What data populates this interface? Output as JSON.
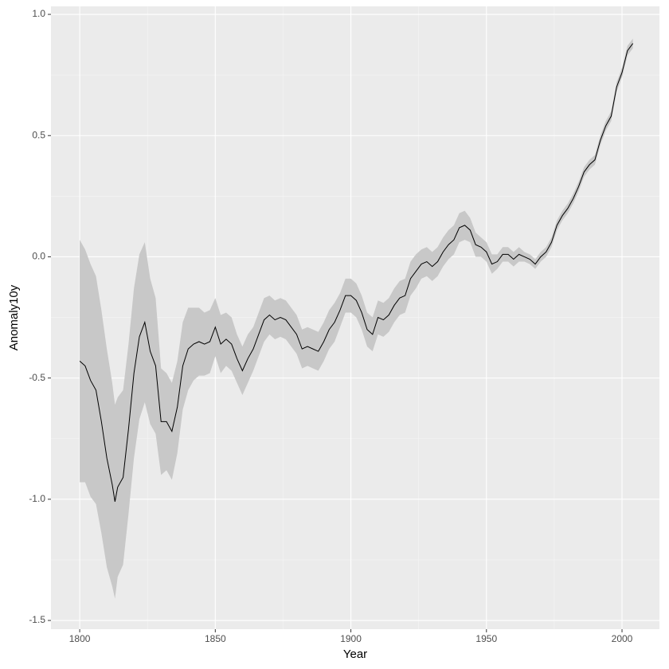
{
  "chart_data": {
    "type": "ribbon-line",
    "x_label": "Year",
    "y_label": "Anomaly10y",
    "x": [
      1800,
      1802,
      1804,
      1806,
      1808,
      1810,
      1812,
      1813,
      1814,
      1816,
      1818,
      1820,
      1822,
      1824,
      1826,
      1828,
      1830,
      1832,
      1834,
      1836,
      1838,
      1840,
      1842,
      1844,
      1846,
      1848,
      1850,
      1852,
      1854,
      1856,
      1858,
      1860,
      1862,
      1864,
      1866,
      1868,
      1870,
      1872,
      1874,
      1876,
      1878,
      1880,
      1882,
      1884,
      1886,
      1888,
      1890,
      1892,
      1894,
      1896,
      1898,
      1900,
      1902,
      1904,
      1906,
      1908,
      1910,
      1912,
      1914,
      1916,
      1918,
      1920,
      1922,
      1924,
      1926,
      1928,
      1930,
      1932,
      1934,
      1936,
      1938,
      1940,
      1942,
      1944,
      1946,
      1948,
      1950,
      1952,
      1954,
      1956,
      1958,
      1960,
      1962,
      1964,
      1966,
      1968,
      1970,
      1972,
      1974,
      1976,
      1978,
      1980,
      1982,
      1984,
      1986,
      1988,
      1990,
      1992,
      1994,
      1996,
      1998,
      2000,
      2002,
      2004
    ],
    "values": [
      -0.43,
      -0.45,
      -0.51,
      -0.55,
      -0.68,
      -0.83,
      -0.94,
      -1.01,
      -0.95,
      -0.91,
      -0.71,
      -0.48,
      -0.33,
      -0.27,
      -0.39,
      -0.45,
      -0.68,
      -0.68,
      -0.72,
      -0.62,
      -0.45,
      -0.38,
      -0.36,
      -0.35,
      -0.36,
      -0.35,
      -0.29,
      -0.36,
      -0.34,
      -0.36,
      -0.42,
      -0.47,
      -0.42,
      -0.38,
      -0.32,
      -0.26,
      -0.24,
      -0.26,
      -0.25,
      -0.26,
      -0.29,
      -0.32,
      -0.38,
      -0.37,
      -0.38,
      -0.39,
      -0.35,
      -0.3,
      -0.27,
      -0.22,
      -0.16,
      -0.16,
      -0.18,
      -0.23,
      -0.3,
      -0.32,
      -0.25,
      -0.26,
      -0.24,
      -0.2,
      -0.17,
      -0.16,
      -0.09,
      -0.06,
      -0.03,
      -0.02,
      -0.04,
      -0.02,
      0.02,
      0.05,
      0.07,
      0.12,
      0.13,
      0.11,
      0.05,
      0.04,
      0.02,
      -0.03,
      -0.02,
      0.01,
      0.01,
      -0.01,
      0.01,
      0.0,
      -0.01,
      -0.03,
      0.0,
      0.02,
      0.06,
      0.13,
      0.17,
      0.2,
      0.24,
      0.29,
      0.35,
      0.38,
      0.4,
      0.48,
      0.54,
      0.58,
      0.7,
      0.76,
      0.85,
      0.88
    ],
    "lower": [
      -0.93,
      -0.93,
      -0.99,
      -1.02,
      -1.14,
      -1.28,
      -1.36,
      -1.41,
      -1.32,
      -1.27,
      -1.06,
      -0.83,
      -0.67,
      -0.6,
      -0.69,
      -0.73,
      -0.9,
      -0.88,
      -0.92,
      -0.81,
      -0.63,
      -0.55,
      -0.51,
      -0.49,
      -0.49,
      -0.48,
      -0.41,
      -0.48,
      -0.45,
      -0.47,
      -0.52,
      -0.57,
      -0.52,
      -0.47,
      -0.41,
      -0.35,
      -0.32,
      -0.34,
      -0.33,
      -0.34,
      -0.37,
      -0.4,
      -0.46,
      -0.45,
      -0.46,
      -0.47,
      -0.43,
      -0.38,
      -0.35,
      -0.29,
      -0.23,
      -0.23,
      -0.25,
      -0.3,
      -0.37,
      -0.39,
      -0.32,
      -0.33,
      -0.31,
      -0.27,
      -0.24,
      -0.23,
      -0.16,
      -0.13,
      -0.09,
      -0.08,
      -0.1,
      -0.08,
      -0.04,
      -0.01,
      0.01,
      0.06,
      0.07,
      0.06,
      0.0,
      0.0,
      -0.02,
      -0.07,
      -0.05,
      -0.02,
      -0.02,
      -0.04,
      -0.02,
      -0.02,
      -0.03,
      -0.05,
      -0.02,
      0.0,
      0.04,
      0.11,
      0.15,
      0.18,
      0.22,
      0.27,
      0.33,
      0.36,
      0.38,
      0.46,
      0.52,
      0.56,
      0.68,
      0.74,
      0.83,
      0.86
    ],
    "upper": [
      0.07,
      0.03,
      -0.03,
      -0.08,
      -0.22,
      -0.38,
      -0.52,
      -0.61,
      -0.58,
      -0.55,
      -0.36,
      -0.13,
      0.01,
      0.06,
      -0.09,
      -0.17,
      -0.46,
      -0.48,
      -0.52,
      -0.43,
      -0.27,
      -0.21,
      -0.21,
      -0.21,
      -0.23,
      -0.22,
      -0.17,
      -0.24,
      -0.23,
      -0.25,
      -0.32,
      -0.37,
      -0.32,
      -0.29,
      -0.23,
      -0.17,
      -0.16,
      -0.18,
      -0.17,
      -0.18,
      -0.21,
      -0.24,
      -0.3,
      -0.29,
      -0.3,
      -0.31,
      -0.27,
      -0.22,
      -0.19,
      -0.15,
      -0.09,
      -0.09,
      -0.11,
      -0.16,
      -0.23,
      -0.25,
      -0.18,
      -0.19,
      -0.17,
      -0.13,
      -0.1,
      -0.09,
      -0.02,
      0.01,
      0.03,
      0.04,
      0.02,
      0.04,
      0.08,
      0.11,
      0.13,
      0.18,
      0.19,
      0.16,
      0.1,
      0.08,
      0.06,
      0.01,
      0.01,
      0.04,
      0.04,
      0.02,
      0.04,
      0.02,
      0.01,
      -0.01,
      0.02,
      0.04,
      0.08,
      0.15,
      0.19,
      0.22,
      0.26,
      0.31,
      0.37,
      0.4,
      0.42,
      0.5,
      0.56,
      0.6,
      0.72,
      0.78,
      0.87,
      0.9
    ],
    "color": "#000000",
    "band_color": "#c8c8c8",
    "xlim": [
      1789.4,
      2013.8
    ],
    "ylim": [
      -1.536,
      1.033
    ],
    "xticks": [
      1800,
      1850,
      1900,
      1950,
      2000
    ],
    "yticks": [
      -1.5,
      {
        "value": -1,
        "label": "-1.0"
      },
      -0.5,
      {
        "value": 0,
        "label": "0.0"
      },
      0.5,
      {
        "value": 1,
        "label": "1.0"
      }
    ],
    "grid": true
  }
}
